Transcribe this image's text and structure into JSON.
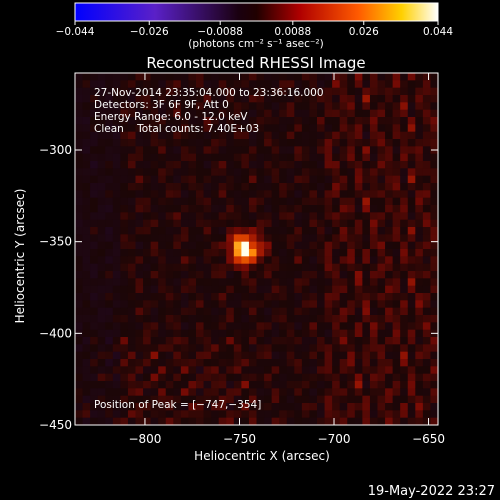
{
  "chart_data": {
    "type": "heatmap",
    "title": "Reconstructed RHESSI Image",
    "xlabel": "Heliocentric X (arcsec)",
    "ylabel": "Heliocentric Y (arcsec)",
    "xlim": [
      -837,
      -645
    ],
    "ylim": [
      -450,
      -258
    ],
    "x_ticks": [
      {
        "value": -800,
        "label": "−800"
      },
      {
        "value": -750,
        "label": "−750"
      },
      {
        "value": -700,
        "label": "−700"
      },
      {
        "value": -650,
        "label": "−650"
      }
    ],
    "y_ticks": [
      {
        "value": -300,
        "label": "−300"
      },
      {
        "value": -350,
        "label": "−350"
      },
      {
        "value": -400,
        "label": "−400"
      },
      {
        "value": -450,
        "label": "−450"
      }
    ],
    "colorbar": {
      "min": -0.044,
      "max": 0.044,
      "ticks": [
        {
          "value": -0.044,
          "label": "−0.044"
        },
        {
          "value": -0.026,
          "label": "−0.026"
        },
        {
          "value": -0.0088,
          "label": "−0.0088"
        },
        {
          "value": 0.0088,
          "label": "0.0088"
        },
        {
          "value": 0.026,
          "label": "0.026"
        },
        {
          "value": 0.044,
          "label": "0.044"
        }
      ],
      "unit_label": "(photons cm⁻² s⁻¹ asec⁻²)",
      "colormap": "blue-purple-black-red-orange-yellow-white"
    },
    "info_lines": [
      "27-Nov-2014 23:35:04.000 to 23:36:16.000",
      "Detectors: 3F 6F 9F, Att 0",
      "Energy Range: 6.0 - 12.0 keV",
      "Clean    Total counts: 7.40E+03"
    ],
    "peak_label": "Position of Peak = [−747,−354]",
    "peak": {
      "x": -747,
      "y": -354,
      "value": 0.044
    },
    "timestamp": "19-May-2022 23:27"
  }
}
